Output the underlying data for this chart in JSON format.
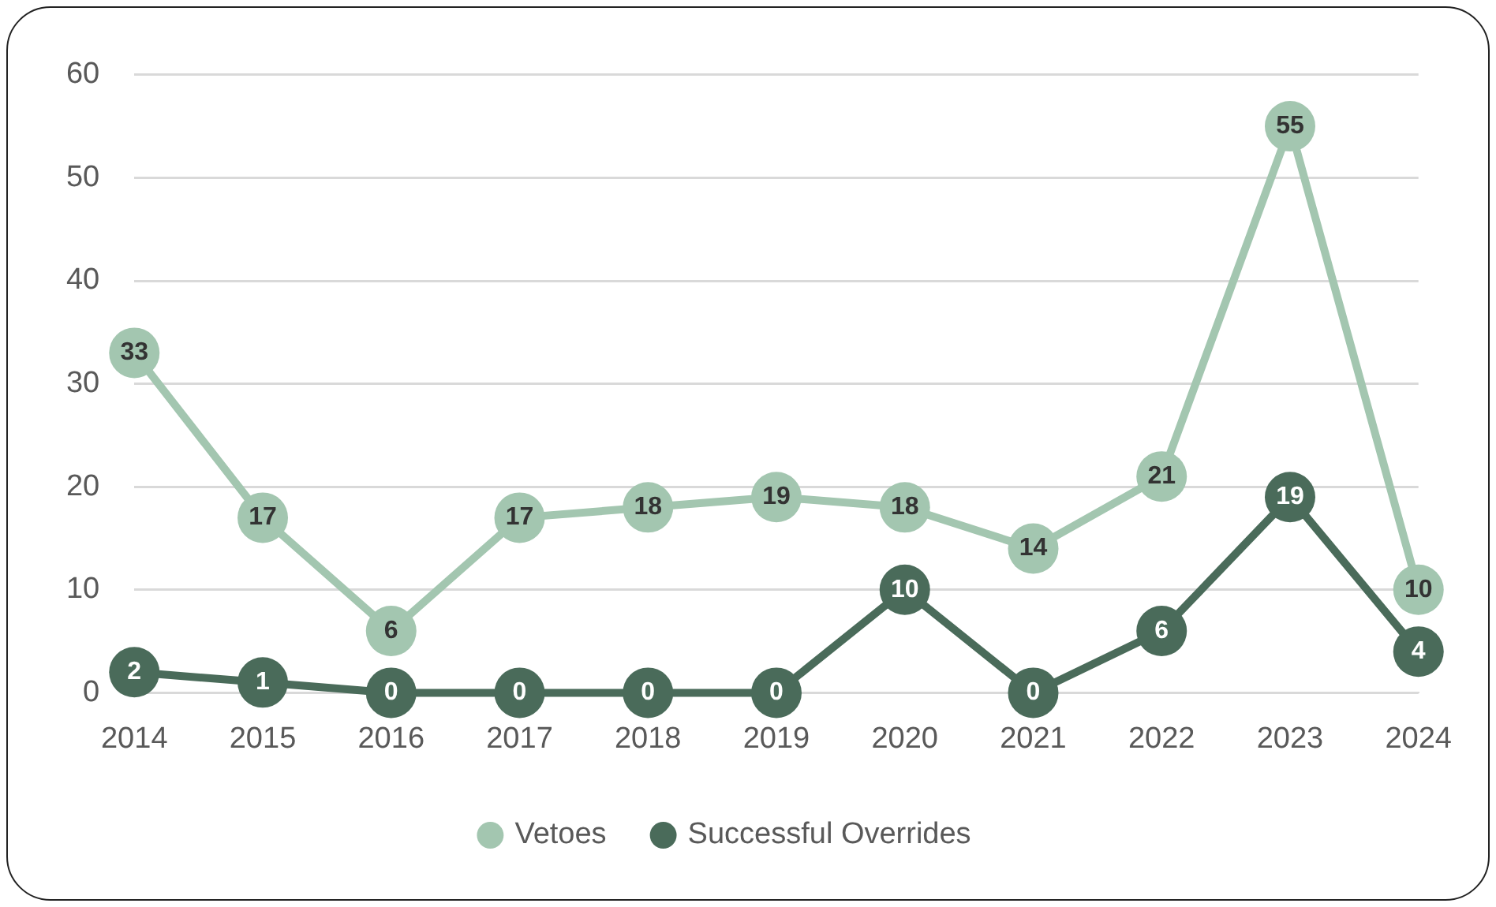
{
  "chart_data": {
    "type": "line",
    "categories": [
      "2014",
      "2015",
      "2016",
      "2017",
      "2018",
      "2019",
      "2020",
      "2021",
      "2022",
      "2023",
      "2024"
    ],
    "series": [
      {
        "name": "Vetoes",
        "color": "#a3c6b0",
        "values": [
          33,
          17,
          6,
          17,
          18,
          19,
          18,
          14,
          21,
          55,
          10
        ]
      },
      {
        "name": "Successful Overrides",
        "color": "#4a6b5a",
        "values": [
          2,
          1,
          0,
          0,
          0,
          0,
          10,
          0,
          6,
          19,
          4
        ]
      }
    ],
    "ylim": [
      0,
      60
    ],
    "yticks": [
      0,
      10,
      20,
      30,
      40,
      50,
      60
    ],
    "grid": "y",
    "legend": "bottom",
    "marker": "circle",
    "line_style": "solid",
    "data_labels": true
  }
}
